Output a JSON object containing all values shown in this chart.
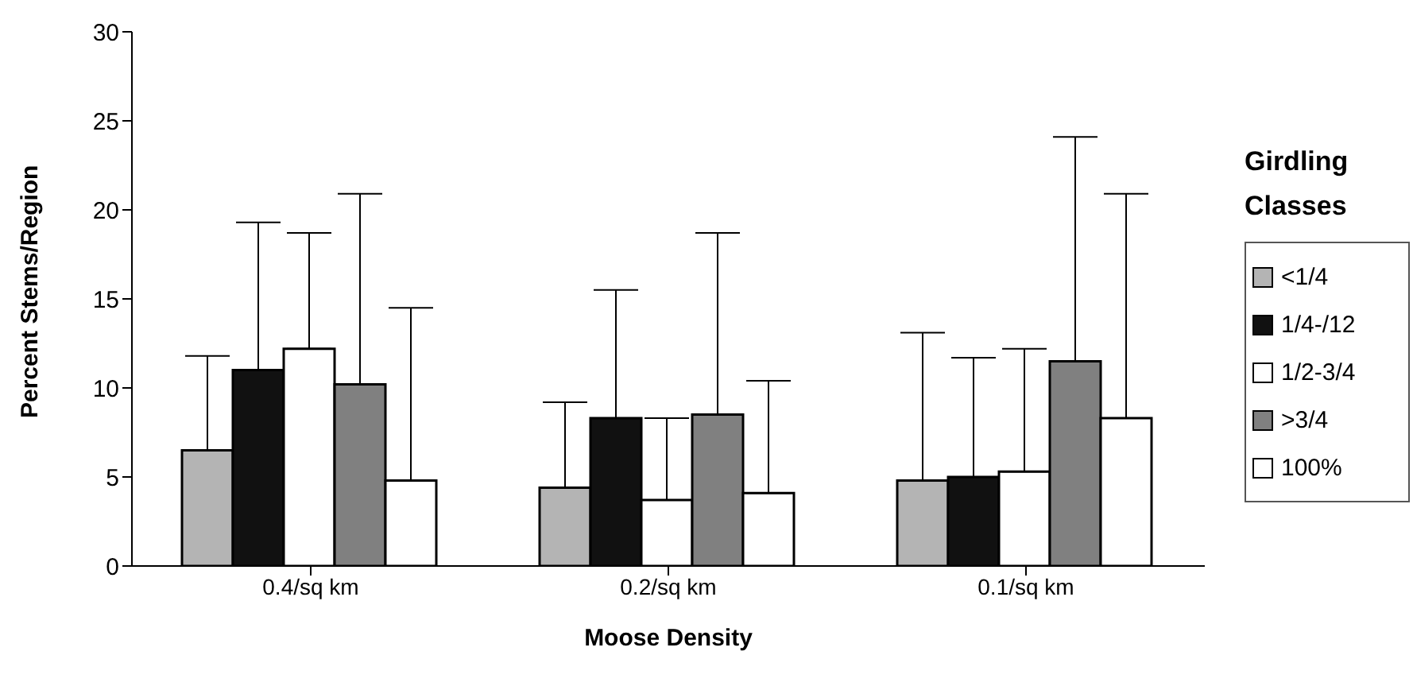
{
  "chart_data": {
    "type": "bar",
    "xlabel": "Moose Density",
    "ylabel": "Percent Stems/Region",
    "legend_title": "Girdling Classes",
    "legend": "right",
    "grid": false,
    "categories": [
      "0.4/sq km",
      "0.2/sq km",
      "0.1/sq km"
    ],
    "ylim": [
      0,
      30
    ],
    "yticks": [
      0,
      5,
      10,
      15,
      20,
      25,
      30
    ],
    "series": [
      {
        "name": "<1/4",
        "color": "#b4b4b4",
        "values": [
          6.5,
          4.4,
          4.8
        ],
        "errors": [
          [
            6.5,
            11.8
          ],
          [
            4.4,
            9.2
          ],
          [
            4.8,
            13.1
          ]
        ]
      },
      {
        "name": "1/4-/12",
        "color": "#111111",
        "values": [
          11.0,
          8.3,
          5.0
        ],
        "errors": [
          [
            11.0,
            19.3
          ],
          [
            8.3,
            15.5
          ],
          [
            5.0,
            11.7
          ]
        ]
      },
      {
        "name": "1/2-3/4",
        "color": "#ffffff",
        "values": [
          12.2,
          3.7,
          5.3
        ],
        "errors": [
          [
            12.2,
            18.7
          ],
          [
            3.7,
            8.3
          ],
          [
            5.3,
            12.2
          ]
        ]
      },
      {
        "name": ">3/4",
        "color": "#808080",
        "values": [
          10.2,
          8.5,
          11.5
        ],
        "errors": [
          [
            10.2,
            20.9
          ],
          [
            8.5,
            18.7
          ],
          [
            11.5,
            24.1
          ]
        ]
      },
      {
        "name": "100%",
        "color": "#ffffff",
        "values": [
          4.8,
          4.1,
          8.3
        ],
        "errors": [
          [
            4.8,
            14.5
          ],
          [
            4.1,
            10.4
          ],
          [
            8.3,
            20.9
          ]
        ]
      }
    ]
  }
}
